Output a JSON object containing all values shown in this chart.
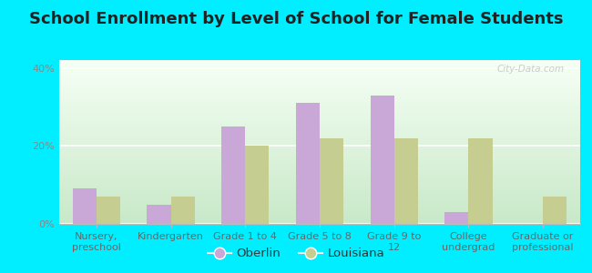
{
  "title": "School Enrollment by Level of School for Female Students",
  "categories": [
    "Nursery,\npreschool",
    "Kindergarten",
    "Grade 1 to 4",
    "Grade 5 to 8",
    "Grade 9 to\n12",
    "College\nundergrad",
    "Graduate or\nprofessional"
  ],
  "oberlin": [
    9,
    5,
    25,
    31,
    33,
    3,
    0
  ],
  "louisiana": [
    7,
    7,
    20,
    22,
    22,
    22,
    7
  ],
  "oberlin_color": "#c9a8d8",
  "louisiana_color": "#c5ce90",
  "background_outer": "#00eeff",
  "grad_top": "#f5fff5",
  "grad_bottom": "#c8e8c8",
  "ylim": [
    0,
    42
  ],
  "yticks": [
    0,
    20,
    40
  ],
  "ytick_labels": [
    "0%",
    "20%",
    "40%"
  ],
  "bar_width": 0.32,
  "legend_labels": [
    "Oberlin",
    "Louisiana"
  ],
  "title_fontsize": 13,
  "tick_fontsize": 8,
  "legend_fontsize": 9.5
}
